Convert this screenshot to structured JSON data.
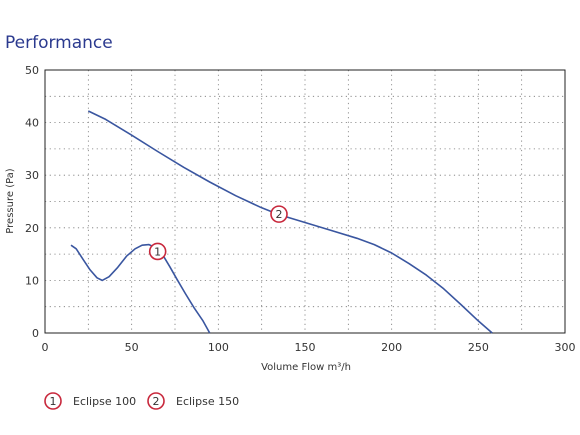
{
  "chart_data": {
    "type": "line",
    "title": "Performance",
    "xlabel": "Volume Flow m³/h",
    "ylabel": "Pressure (Pa)",
    "xlim": [
      0,
      300
    ],
    "ylim": [
      0,
      50
    ],
    "x_ticks": [
      0,
      50,
      100,
      150,
      200,
      250,
      300
    ],
    "y_ticks": [
      0,
      10,
      20,
      30,
      40,
      50
    ],
    "grid": true,
    "legend_position": "bottom-left",
    "colors": {
      "line": "#3a56a0",
      "marker": "#c8283c",
      "title": "#2b3a8f",
      "grid": "#777777"
    },
    "series": [
      {
        "name": "Eclipse 100",
        "marker_label": "1",
        "marker_at": [
          65,
          15.5
        ],
        "points": [
          [
            15,
            16.7
          ],
          [
            18,
            16
          ],
          [
            22,
            14
          ],
          [
            26,
            12
          ],
          [
            30,
            10.5
          ],
          [
            33,
            10
          ],
          [
            37,
            10.7
          ],
          [
            42,
            12.5
          ],
          [
            47,
            14.6
          ],
          [
            52,
            16
          ],
          [
            56,
            16.7
          ],
          [
            60,
            16.8
          ],
          [
            64,
            16.2
          ],
          [
            68,
            14.8
          ],
          [
            72,
            12.6
          ],
          [
            76,
            10.3
          ],
          [
            81,
            7.5
          ],
          [
            86,
            4.8
          ],
          [
            91,
            2.4
          ],
          [
            95,
            0
          ]
        ]
      },
      {
        "name": "Eclipse 150",
        "marker_label": "2",
        "marker_at": [
          135,
          22.6
        ],
        "points": [
          [
            25,
            42.2
          ],
          [
            35,
            40.6
          ],
          [
            50,
            37.6
          ],
          [
            65,
            34.5
          ],
          [
            80,
            31.5
          ],
          [
            95,
            28.7
          ],
          [
            110,
            26.1
          ],
          [
            125,
            23.8
          ],
          [
            135,
            22.5
          ],
          [
            150,
            21
          ],
          [
            165,
            19.5
          ],
          [
            180,
            18
          ],
          [
            190,
            16.8
          ],
          [
            200,
            15.2
          ],
          [
            210,
            13.2
          ],
          [
            220,
            11
          ],
          [
            230,
            8.4
          ],
          [
            240,
            5.4
          ],
          [
            250,
            2.3
          ],
          [
            258,
            0
          ]
        ]
      }
    ]
  }
}
